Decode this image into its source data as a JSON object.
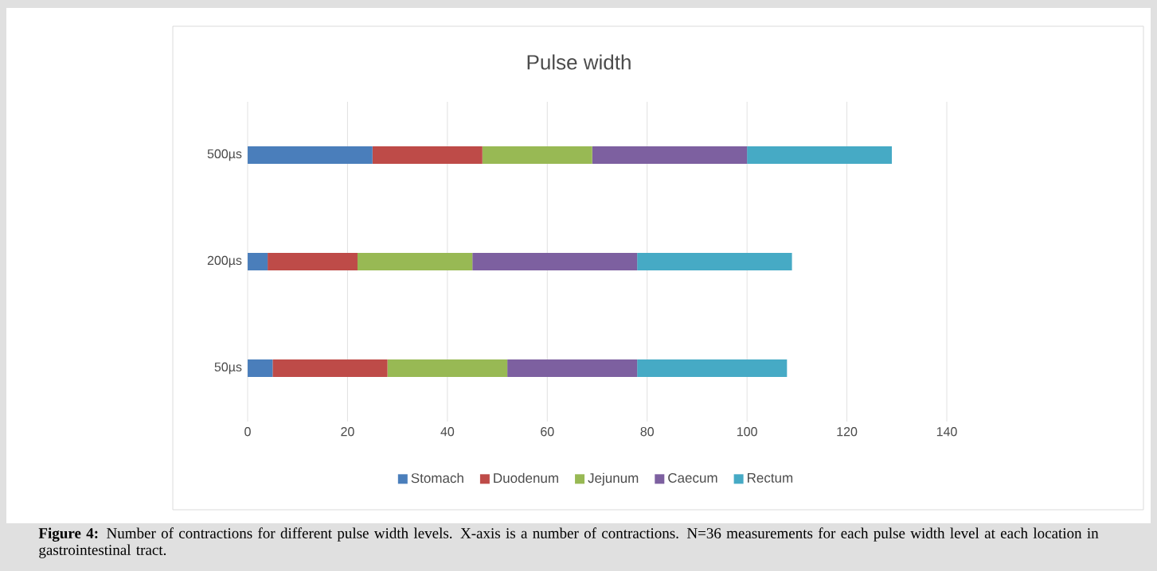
{
  "chart_data": {
    "type": "bar",
    "orientation": "horizontal",
    "stacked": true,
    "title": "Pulse width",
    "categories": [
      "500µs",
      "200µs",
      "50µs"
    ],
    "series": [
      {
        "name": "Stomach",
        "color": "#4a7ebb",
        "values": [
          25,
          4,
          5
        ]
      },
      {
        "name": "Duodenum",
        "color": "#be4b48",
        "values": [
          22,
          18,
          23
        ]
      },
      {
        "name": "Jejunum",
        "color": "#98b954",
        "values": [
          22,
          23,
          24
        ]
      },
      {
        "name": "Caecum",
        "color": "#7d60a0",
        "values": [
          31,
          33,
          26
        ]
      },
      {
        "name": "Rectum",
        "color": "#46aac5",
        "values": [
          29,
          31,
          30
        ]
      }
    ],
    "xlim": [
      0,
      140
    ],
    "xticks": [
      0,
      20,
      40,
      60,
      80,
      100,
      120,
      140
    ],
    "grid": "x",
    "legend": "bottom",
    "annotations": [
      "**Figure 4:** Number of contractions for different pulse width levels. X-axis is a number of contractions. N=36 measurements for each pulse width level at each location in gastrointestinal tract."
    ]
  }
}
